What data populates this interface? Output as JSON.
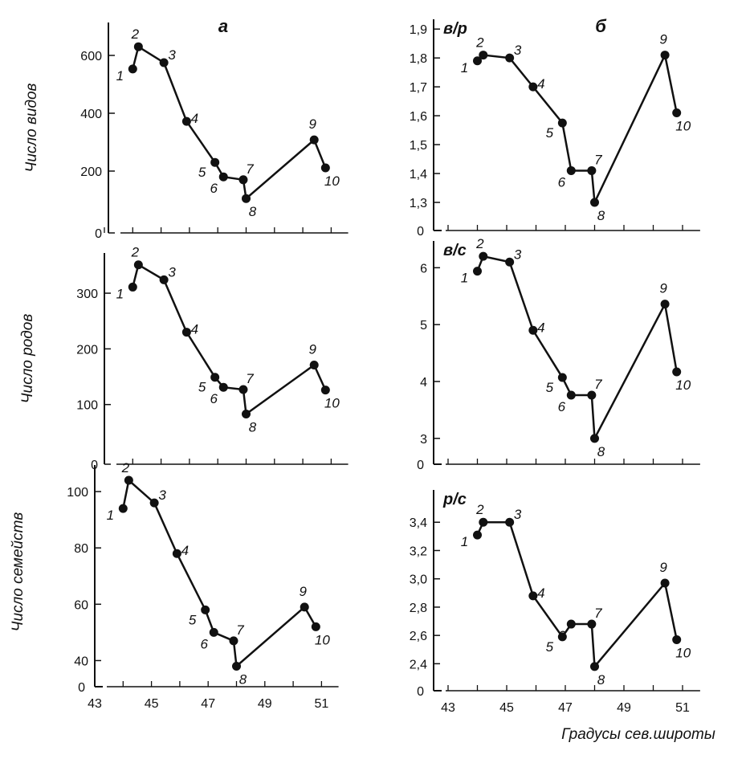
{
  "chart_data": {
    "type": "line",
    "xlabel": "Градусы сев.широты",
    "xticks": [
      43,
      45,
      47,
      49,
      51
    ],
    "xlim": [
      43,
      51
    ],
    "x": [
      44.0,
      44.2,
      45.1,
      45.9,
      46.9,
      47.2,
      47.9,
      48.0,
      50.4,
      50.8
    ],
    "point_labels": [
      "1",
      "2",
      "3",
      "4",
      "5",
      "6",
      "7",
      "8",
      "9",
      "10"
    ],
    "groups": [
      {
        "label": "а"
      },
      {
        "label": "б"
      }
    ],
    "panels": [
      {
        "id": "species",
        "group": "а",
        "ylabel": "Число видов",
        "ylim": [
          0,
          700
        ],
        "yticks": [
          0,
          200,
          400,
          600
        ],
        "origin_label": "",
        "values": [
          553,
          630,
          575,
          372,
          230,
          180,
          170,
          105,
          308,
          211
        ]
      },
      {
        "id": "genera",
        "group": "а",
        "ylabel": "Число родов",
        "ylim": [
          0,
          365
        ],
        "yticks": [
          0,
          100,
          200,
          300
        ],
        "origin_label": "",
        "values": [
          311,
          351,
          324,
          230,
          149,
          131,
          127,
          83,
          171,
          126
        ]
      },
      {
        "id": "families",
        "group": "а",
        "ylabel": "Число семейств",
        "ylim": [
          35,
          108
        ],
        "yticks": [
          40,
          60,
          80,
          100
        ],
        "origin_label": "0",
        "values": [
          94,
          104,
          96,
          78,
          58,
          50,
          47,
          38,
          59,
          52
        ]
      },
      {
        "id": "species_per_genus",
        "group": "б",
        "ylabel": "в/р",
        "ylim": [
          1.25,
          1.92
        ],
        "yticks": [
          1.3,
          1.4,
          1.5,
          1.6,
          1.7,
          1.8,
          1.9
        ],
        "tick_format": "1,1",
        "origin_label": "0",
        "values": [
          1.79,
          1.81,
          1.8,
          1.7,
          1.575,
          1.41,
          1.41,
          1.3,
          1.81,
          1.61
        ]
      },
      {
        "id": "species_per_family",
        "group": "б",
        "ylabel": "в/с",
        "ylim": [
          2.8,
          6.4
        ],
        "yticks": [
          3,
          4,
          5,
          6
        ],
        "origin_label": "0",
        "values": [
          5.94,
          6.2,
          6.1,
          4.9,
          4.07,
          3.76,
          3.76,
          3.0,
          5.36,
          4.17
        ]
      },
      {
        "id": "genera_per_family",
        "group": "б",
        "ylabel": "р/с",
        "ylim": [
          2.3,
          3.6
        ],
        "yticks": [
          2.4,
          2.6,
          2.8,
          3.0,
          3.2,
          3.4
        ],
        "tick_format": "1,1",
        "origin_label": "0",
        "values": [
          3.31,
          3.4,
          3.4,
          2.88,
          2.59,
          2.68,
          2.68,
          2.38,
          2.97,
          2.57
        ]
      }
    ]
  }
}
